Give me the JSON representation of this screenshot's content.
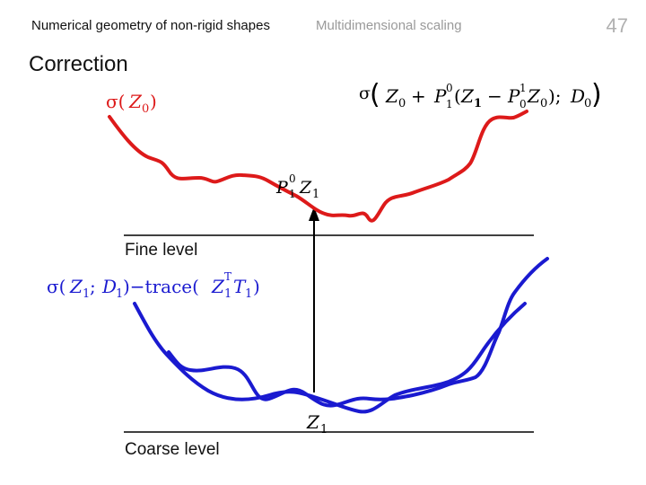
{
  "header": {
    "course_title": "Numerical geometry of non-rigid shapes",
    "section_title": "Multidimensional scaling",
    "page_number": "47"
  },
  "slide": {
    "title": "Correction"
  },
  "diagram": {
    "fine_level_label": "Fine level",
    "coarse_level_label": "Coarse level",
    "colors": {
      "red_curve": "#dd1a1a",
      "blue_curve": "#1a1ad0",
      "axis": "#000000"
    }
  }
}
